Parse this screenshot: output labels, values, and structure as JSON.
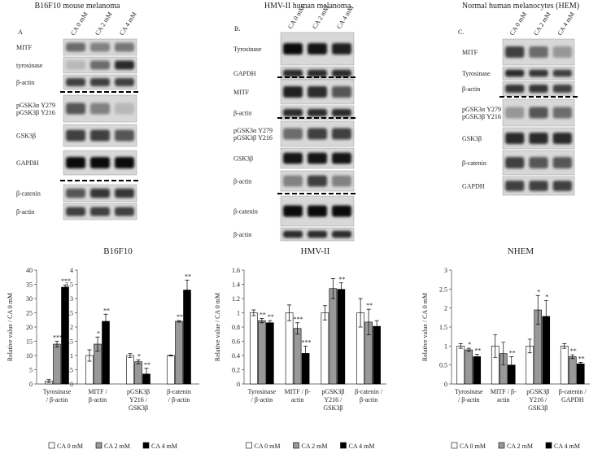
{
  "blots": [
    {
      "title": "B16F10 mouse melanoma",
      "letter": "A",
      "lanes": [
        "CA 0 mM",
        "CA 2 mM",
        "CA 4 mM"
      ],
      "rows": [
        "MITF",
        "tyrosinase",
        "β-actin",
        "pGSK3α Y279\npGSK3β Y216",
        "GSK3β",
        "GAPDH",
        "β-catenin",
        "β-actin"
      ]
    },
    {
      "title": "HMV-II human melanoma",
      "letter": "B.",
      "lanes": [
        "CA 0 mM",
        "CA 2 mM",
        "CA 4 mM"
      ],
      "rows": [
        "Tyrosinase",
        "GAPDH",
        "MITF",
        "β-actin",
        "pGSK3α Y279\npGSK3β Y216",
        "GSK3β",
        "β-actin",
        "β-catenin",
        "β-actin"
      ]
    },
    {
      "title": "Normal human melanocytes (HEM)",
      "letter": "C.",
      "lanes": [
        "CA 0 mM",
        "CA 2 mM",
        "CA 4 mM"
      ],
      "rows": [
        "MITF",
        "Tyrosinase",
        "β-actin",
        "pGSK3α Y279\npGSK3β Y216",
        "GSK3β",
        "β-catenin",
        "GAPDH"
      ]
    }
  ],
  "chart_data": [
    {
      "type": "bar",
      "title": "B16F10",
      "ylabel": "Relative value / CA 0 mM",
      "categories": [
        "Tyrosinase\n/ β-actin",
        "MITF /\nβ-actin",
        "pGSK3β\nY216 /\nGSK3β",
        "β-catenin\n/ β-actin"
      ],
      "category_axes": [
        "y",
        "y2",
        "y2",
        "y2"
      ],
      "ylim": [
        0,
        40
      ],
      "yticks": [
        0,
        5,
        10,
        15,
        20,
        25,
        30,
        35,
        40
      ],
      "y2lim": [
        0,
        4
      ],
      "y2ticks": [
        0,
        0.5,
        1,
        1.5,
        2,
        2.5,
        3,
        3.5,
        4
      ],
      "series": [
        {
          "name": "CA 0 mM",
          "color": "#ffffff",
          "values": [
            1,
            1,
            1,
            1
          ],
          "errors": [
            0.5,
            0.2,
            0.07,
            0.02
          ],
          "significance": [
            null,
            null,
            null,
            null
          ]
        },
        {
          "name": "CA 2 mM",
          "color": "#999999",
          "values": [
            14,
            1.4,
            0.78,
            2.2
          ],
          "errors": [
            1,
            0.25,
            0.07,
            0.03
          ],
          "significance": [
            "***",
            "*",
            "*",
            "**"
          ]
        },
        {
          "name": "CA 4 mM",
          "color": "#000000",
          "values": [
            34,
            2.2,
            0.35,
            3.3
          ],
          "errors": [
            0.8,
            0.25,
            0.2,
            0.35
          ],
          "significance": [
            "***",
            "**",
            "**",
            "**"
          ]
        }
      ]
    },
    {
      "type": "bar",
      "title": "HMV-II",
      "ylabel": "Relative value / CA 0 mM",
      "categories": [
        "Tyrosinase\n/ β-actin",
        "MITF / β-\nactin",
        "pGSK3β\nY216 /\nGSK3β",
        "β-catenin /\nβ-actin"
      ],
      "ylim": [
        0,
        1.6
      ],
      "yticks": [
        0,
        0.2,
        0.4,
        0.6,
        0.8,
        1,
        1.2,
        1.4,
        1.6
      ],
      "series": [
        {
          "name": "CA 0 mM",
          "color": "#ffffff",
          "values": [
            1,
            1,
            1,
            1
          ],
          "errors": [
            0.04,
            0.11,
            0.1,
            0.2
          ],
          "significance": [
            null,
            null,
            null,
            null
          ]
        },
        {
          "name": "CA 2 mM",
          "color": "#999999",
          "values": [
            0.89,
            0.78,
            1.34,
            0.87
          ],
          "errors": [
            0.03,
            0.08,
            0.14,
            0.18
          ],
          "significance": [
            "**",
            "***",
            null,
            "**"
          ]
        },
        {
          "name": "CA 4 mM",
          "color": "#000000",
          "values": [
            0.86,
            0.43,
            1.33,
            0.81
          ],
          "errors": [
            0.03,
            0.1,
            0.09,
            0.08
          ],
          "significance": [
            "**",
            "***",
            "**",
            null
          ]
        }
      ]
    },
    {
      "type": "bar",
      "title": "NHEM",
      "ylabel": "Relative value / CA 0 mM",
      "categories": [
        "Tyrosinase\n/ β-actin",
        "MITF / β-\nactin",
        "pGSK3β\nY216 /\nGSK3β",
        "β-catenin /\nGAPDH"
      ],
      "ylim": [
        0,
        3
      ],
      "yticks": [
        0,
        0.5,
        1,
        1.5,
        2,
        2.5,
        3
      ],
      "series": [
        {
          "name": "CA 0 mM",
          "color": "#ffffff",
          "values": [
            1,
            1,
            1,
            1
          ],
          "errors": [
            0.06,
            0.3,
            0.18,
            0.06
          ],
          "significance": [
            null,
            null,
            null,
            null
          ]
        },
        {
          "name": "CA 2 mM",
          "color": "#999999",
          "values": [
            0.9,
            0.8,
            1.95,
            0.72
          ],
          "errors": [
            0.04,
            0.3,
            0.38,
            0.05
          ],
          "significance": [
            "*",
            null,
            "*",
            "**"
          ]
        },
        {
          "name": "CA 4 mM",
          "color": "#000000",
          "values": [
            0.72,
            0.5,
            1.78,
            0.53
          ],
          "errors": [
            0.06,
            0.22,
            0.42,
            0.04
          ],
          "significance": [
            "**",
            "**",
            "*",
            "**"
          ]
        }
      ]
    }
  ]
}
